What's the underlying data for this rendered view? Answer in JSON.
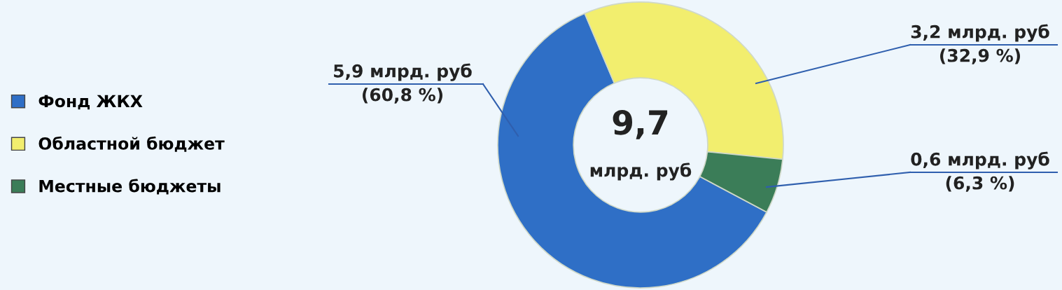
{
  "chart_data": {
    "type": "donut",
    "categories": [
      "Фонд ЖКХ",
      "Областной бюджет",
      "Местные бюджеты"
    ],
    "values": [
      5.9,
      3.2,
      0.6
    ],
    "colors": [
      "#2f6fc6",
      "#f2ee6e",
      "#3b7d58"
    ],
    "value_labels": [
      "5,9 млрд. руб\n(60,8 %)",
      "3,2 млрд. руб\n(32,9 %)",
      "0,6 млрд. руб\n(6,3 %)"
    ],
    "annotations": [
      "9,7",
      "млрд. руб"
    ],
    "legend": "left"
  }
}
